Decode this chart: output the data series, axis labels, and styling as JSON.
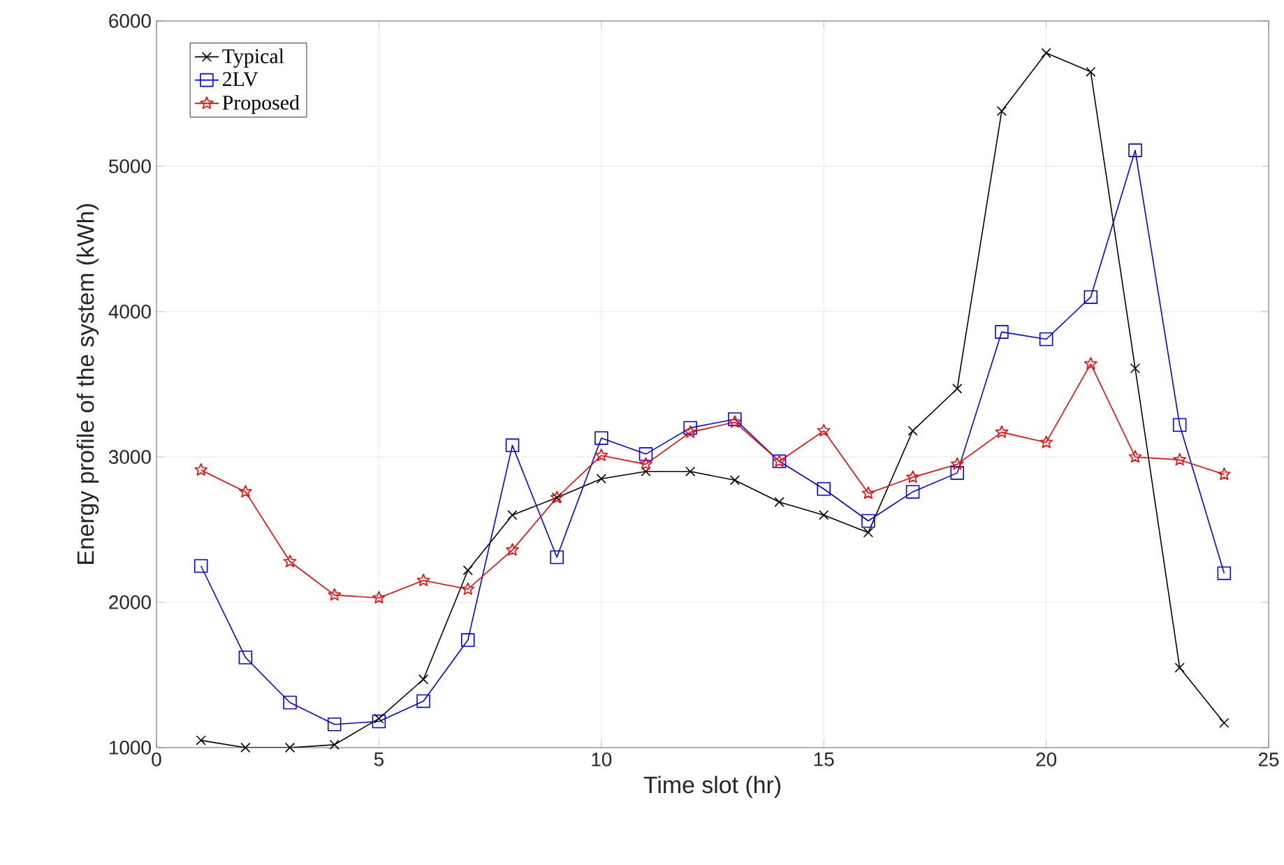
{
  "chart_data": {
    "type": "line",
    "xlabel": "Time slot (hr)",
    "ylabel": "Energy profile of the system (kWh)",
    "x": [
      1,
      2,
      3,
      4,
      5,
      6,
      7,
      8,
      9,
      10,
      11,
      12,
      13,
      14,
      15,
      16,
      17,
      18,
      19,
      20,
      21,
      22,
      23,
      24
    ],
    "series": [
      {
        "name": "Typical",
        "color": "#000000",
        "marker": "cross",
        "values": [
          1050,
          1000,
          1000,
          1020,
          1200,
          1470,
          2220,
          2600,
          2720,
          2850,
          2900,
          2900,
          2840,
          2690,
          2600,
          2480,
          3180,
          3470,
          5380,
          5780,
          5650,
          3610,
          1550,
          1170
        ]
      },
      {
        "name": "2LV",
        "color": "#0000ff",
        "marker": "square",
        "values": [
          2250,
          1620,
          1310,
          1160,
          1180,
          1320,
          1740,
          3080,
          2310,
          3130,
          3020,
          3200,
          3260,
          2970,
          2780,
          2560,
          2760,
          2890,
          3860,
          3810,
          4100,
          5110,
          3220,
          2200
        ]
      },
      {
        "name": "Proposed",
        "color": "#ff0000",
        "marker": "star",
        "values": [
          2910,
          2760,
          2280,
          2050,
          2030,
          2150,
          2090,
          2360,
          2720,
          3010,
          2950,
          3170,
          3240,
          2970,
          3180,
          2750,
          2860,
          2950,
          3170,
          3100,
          3640,
          3000,
          2980,
          2880
        ]
      }
    ],
    "xlim": [
      0,
      25
    ],
    "xticks": [
      0,
      5,
      10,
      15,
      20,
      25
    ],
    "ylim": [
      1000,
      6000
    ],
    "yticks": [
      1000,
      2000,
      3000,
      4000,
      5000,
      6000
    ],
    "grid": true,
    "legend": "top left",
    "line_style": "solid"
  }
}
